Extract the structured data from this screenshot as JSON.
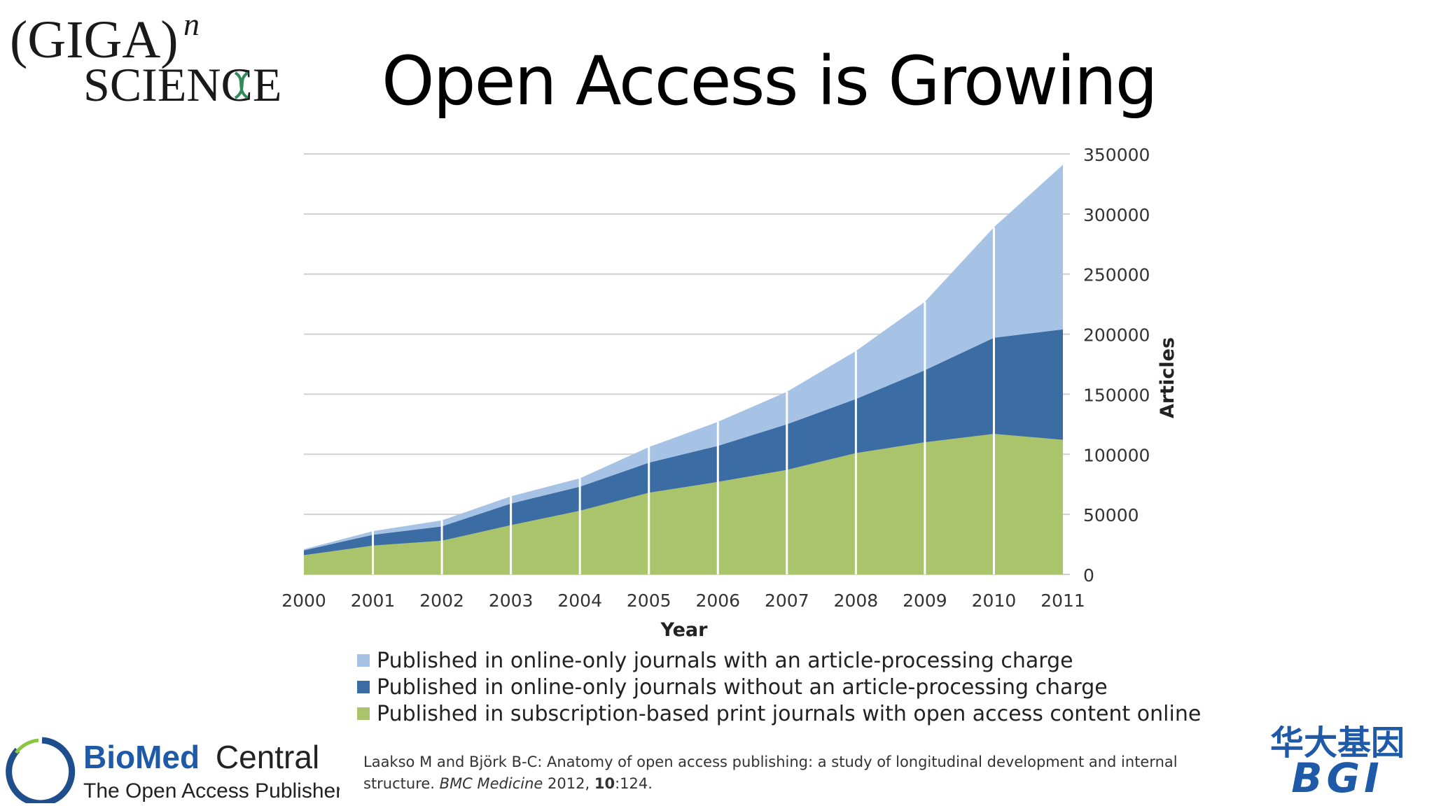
{
  "slide": {
    "title": "Open Access is Growing",
    "giga_logo": {
      "line1": "(GIGA)",
      "superscript": "n",
      "line2": "SCIENCE"
    },
    "bmc_logo": {
      "brand_bold": "BioMed",
      "brand_light": "Central",
      "tagline": "The Open Access Publisher"
    },
    "bgi_logo": {
      "chinese": "华大基因",
      "latin": "BGI"
    },
    "citation": {
      "part1": "Laakso M and Björk B-C: Anatomy of open access publishing: a study of longitudinal development and internal structure. ",
      "journal": "BMC Medicine",
      "year_text": " 2012, ",
      "volume": "10",
      "pages": ":124."
    }
  },
  "colors": {
    "apc": "#a6c3e6",
    "no_apc": "#3b6ca3",
    "subscription": "#a9c46b",
    "grid": "#d0d0d0"
  },
  "chart_data": {
    "type": "area",
    "stacked": true,
    "x": [
      2000,
      2001,
      2002,
      2003,
      2004,
      2005,
      2006,
      2007,
      2008,
      2009,
      2010,
      2011
    ],
    "xlabel": "Year",
    "ylabel": "Articles",
    "ylim": [
      0,
      350000
    ],
    "y_ticks": [
      0,
      50000,
      100000,
      150000,
      200000,
      250000,
      300000,
      350000
    ],
    "y_axis_side": "right",
    "grid": true,
    "legend_position": "bottom",
    "series": [
      {
        "name": "Published in subscription-based print journals with open access content online",
        "values": [
          16000,
          24000,
          28000,
          41000,
          53000,
          68000,
          77000,
          87000,
          101000,
          110000,
          117000,
          112000
        ]
      },
      {
        "name": "Published in online-only journals without an article-processing charge",
        "values": [
          4000,
          9000,
          12000,
          18000,
          20000,
          25000,
          30000,
          38000,
          45000,
          60000,
          80000,
          92000
        ]
      },
      {
        "name": "Published in online-only journals with an article-processing charge",
        "values": [
          1000,
          3000,
          5000,
          6000,
          7000,
          13000,
          20000,
          27000,
          40000,
          57000,
          92000,
          137000
        ]
      }
    ]
  }
}
